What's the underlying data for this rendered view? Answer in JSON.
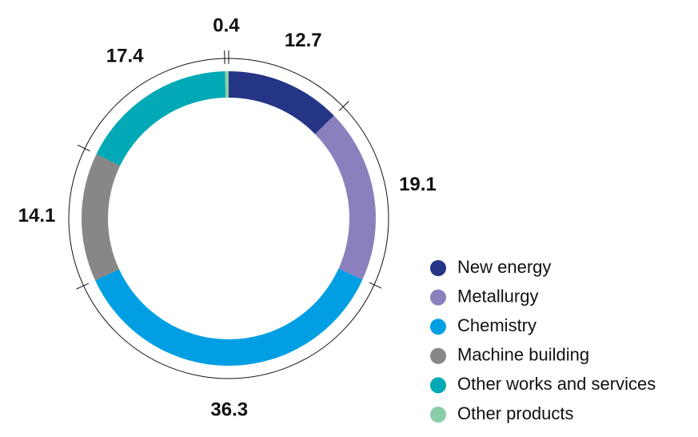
{
  "chart_data": {
    "type": "donut",
    "categories": [
      "New energy",
      "Metallurgy",
      "Chemistry",
      "Machine building",
      "Other works and services",
      "Other products"
    ],
    "values": [
      12.7,
      19.1,
      36.3,
      14.1,
      17.4,
      0.4
    ],
    "colors": [
      "#253585",
      "#8b80bd",
      "#009fe3",
      "#878787",
      "#00a9b5",
      "#8ccda9"
    ]
  }
}
